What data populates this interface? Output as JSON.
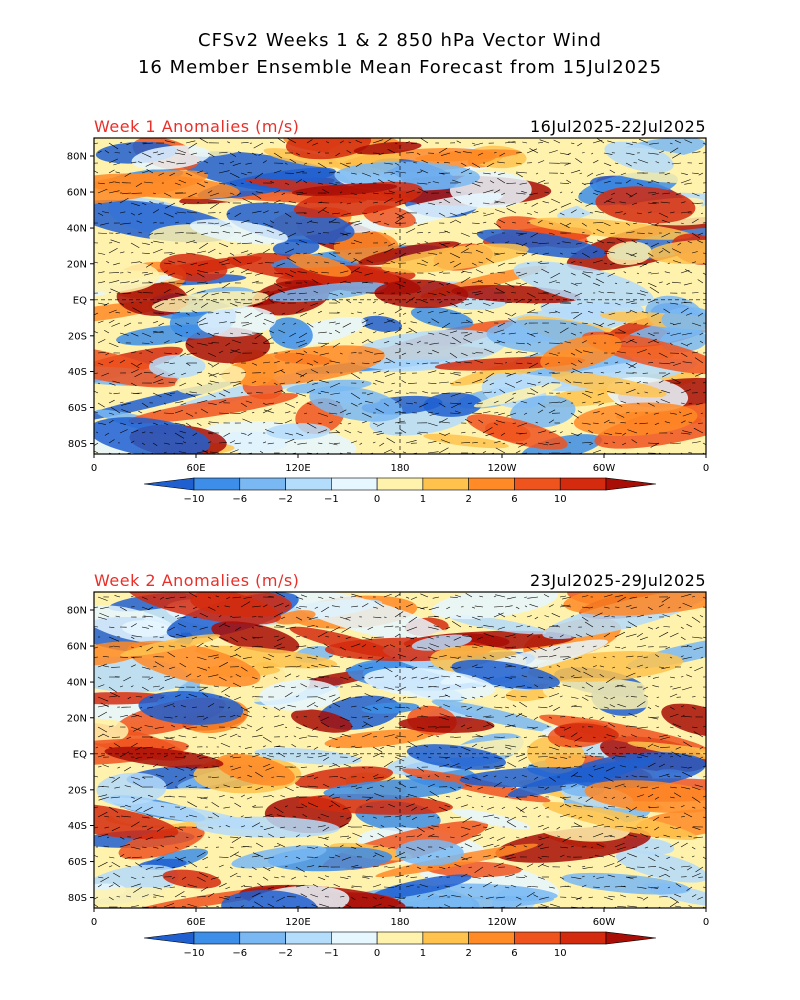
{
  "header": {
    "title_line1": "CFSv2 Weeks 1 & 2 850 hPa Vector Wind",
    "title_line2": "16 Member Ensemble Mean Forecast from 15Jul2025"
  },
  "panels": [
    {
      "label": "Week 1 Anomalies (m/s)",
      "date_range": "16Jul2025-22Jul2025",
      "lat_labels": [
        "80N",
        "60N",
        "40N",
        "20N",
        "EQ",
        "20S",
        "40S",
        "60S",
        "80S"
      ],
      "lon_labels": [
        "0",
        "60E",
        "120E",
        "180",
        "120W",
        "60W",
        "0"
      ],
      "colorbar_labels": [
        "-10",
        "-6",
        "-2",
        "-1",
        "0",
        "1",
        "2",
        "6",
        "10"
      ]
    },
    {
      "label": "Week 2 Anomalies (m/s)",
      "date_range": "23Jul2025-29Jul2025",
      "lat_labels": [
        "80N",
        "60N",
        "40N",
        "20N",
        "EQ",
        "20S",
        "40S",
        "60S",
        "80S"
      ],
      "lon_labels": [
        "0",
        "60E",
        "120E",
        "180",
        "120W",
        "60W",
        "0"
      ],
      "colorbar_labels": [
        "-10",
        "-6",
        "-2",
        "-1",
        "0",
        "1",
        "2",
        "6",
        "10"
      ]
    }
  ],
  "colors": {
    "scale": [
      "#1f5fd0",
      "#3d8ee8",
      "#79b8f3",
      "#b4dcfb",
      "#e6f7ff",
      "#fff2ad",
      "#ffc34d",
      "#ff8a26",
      "#f0541e",
      "#d42a0e",
      "#a80d06"
    ],
    "label_red": "#e8302a"
  }
}
